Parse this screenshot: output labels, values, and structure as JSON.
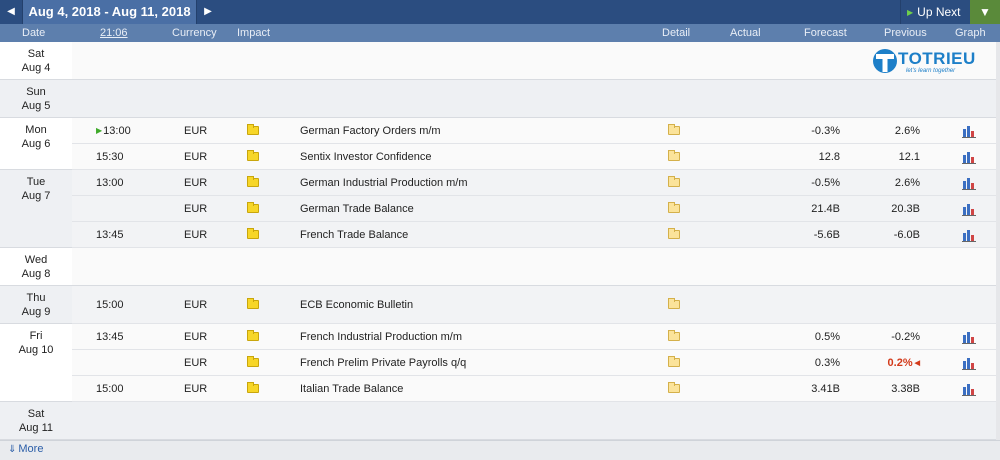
{
  "topbar": {
    "prev_arrow": "◀",
    "next_arrow": "▶",
    "range": "Aug 4, 2018 - Aug 11, 2018",
    "up_next": "Up Next",
    "filter_icon": "filter-icon"
  },
  "columns": {
    "date": "Date",
    "time": "21:06",
    "currency": "Currency",
    "impact": "Impact",
    "detail": "Detail",
    "actual": "Actual",
    "forecast": "Forecast",
    "previous": "Previous",
    "graph": "Graph"
  },
  "logo": {
    "text": "TOTRIEU",
    "sub": "let's learn together"
  },
  "days": [
    {
      "weekday": "Sat",
      "date": "Aug 4"
    },
    {
      "weekday": "Sun",
      "date": "Aug 5"
    },
    {
      "weekday": "Mon",
      "date": "Aug 6"
    },
    {
      "weekday": "Tue",
      "date": "Aug 7"
    },
    {
      "weekday": "Wed",
      "date": "Aug 8"
    },
    {
      "weekday": "Thu",
      "date": "Aug 9"
    },
    {
      "weekday": "Fri",
      "date": "Aug 10"
    },
    {
      "weekday": "Sat",
      "date": "Aug 11"
    }
  ],
  "events": [
    {
      "time": "13:00",
      "currency": "EUR",
      "event": "German Factory Orders m/m",
      "forecast": "-0.3%",
      "previous": "2.6%",
      "graph": true
    },
    {
      "time": "15:30",
      "currency": "EUR",
      "event": "Sentix Investor Confidence",
      "forecast": "12.8",
      "previous": "12.1",
      "graph": true
    },
    {
      "time": "13:00",
      "currency": "EUR",
      "event": "German Industrial Production m/m",
      "forecast": "-0.5%",
      "previous": "2.6%",
      "graph": true
    },
    {
      "time": "",
      "currency": "EUR",
      "event": "German Trade Balance",
      "forecast": "21.4B",
      "previous": "20.3B",
      "graph": true
    },
    {
      "time": "13:45",
      "currency": "EUR",
      "event": "French Trade Balance",
      "forecast": "-5.6B",
      "previous": "-6.0B",
      "graph": true
    },
    {
      "time": "15:00",
      "currency": "EUR",
      "event": "ECB Economic Bulletin",
      "forecast": "",
      "previous": "",
      "graph": false
    },
    {
      "time": "13:45",
      "currency": "EUR",
      "event": "French Industrial Production m/m",
      "forecast": "0.5%",
      "previous": "-0.2%",
      "graph": true
    },
    {
      "time": "",
      "currency": "EUR",
      "event": "French Prelim Private Payrolls q/q",
      "forecast": "0.3%",
      "previous": "0.2%",
      "previous_revised": true,
      "graph": true
    },
    {
      "time": "15:00",
      "currency": "EUR",
      "event": "Italian Trade Balance",
      "forecast": "3.41B",
      "previous": "3.38B",
      "graph": true
    }
  ],
  "footer": {
    "more": "More"
  },
  "colors": {
    "header": "#2b4d80",
    "subheader": "#5d7fad",
    "revised": "#d33a1a",
    "link": "#2b5ea8"
  }
}
